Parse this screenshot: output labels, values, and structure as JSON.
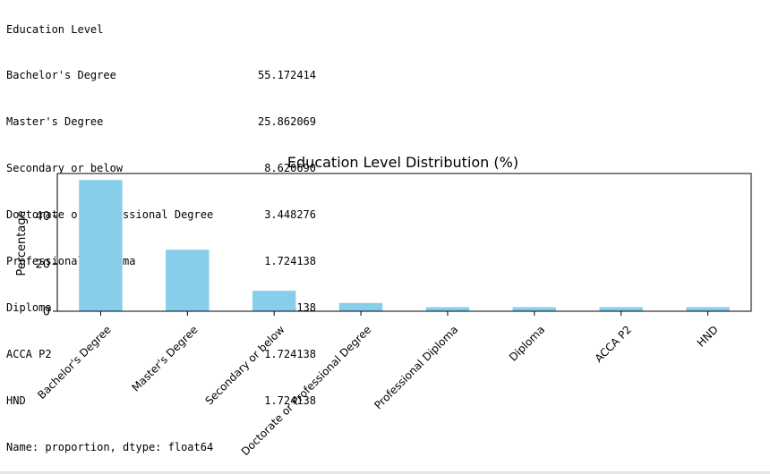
{
  "output": {
    "header": "Education Level",
    "rows": [
      {
        "label": "Bachelor's Degree",
        "value": "55.172414"
      },
      {
        "label": "Master's Degree",
        "value": "25.862069"
      },
      {
        "label": "Secondary or below",
        "value": "8.620690"
      },
      {
        "label": "Doctorate or Professional Degree",
        "value": "3.448276"
      },
      {
        "label": "Professional Diploma",
        "value": "1.724138"
      },
      {
        "label": "Diploma",
        "value": "1.724138"
      },
      {
        "label": "ACCA P2",
        "value": "1.724138"
      },
      {
        "label": "HND",
        "value": "1.724138"
      }
    ],
    "footer": "Name: proportion, dtype: float64"
  },
  "chart_data": {
    "type": "bar",
    "title": "Education Level Distribution (%)",
    "xlabel": "",
    "ylabel": "Percentage",
    "categories": [
      "Bachelor's Degree",
      "Master's Degree",
      "Secondary or below",
      "Doctorate or Professional Degree",
      "Professional Diploma",
      "Diploma",
      "ACCA P2",
      "HND"
    ],
    "values": [
      55.172414,
      25.862069,
      8.62069,
      3.448276,
      1.724138,
      1.724138,
      1.724138,
      1.724138
    ],
    "ylim": [
      0,
      57.93
    ],
    "yticks": [
      0,
      20,
      40
    ],
    "bar_color": "#87ceeb",
    "grid": false,
    "legend": false
  }
}
